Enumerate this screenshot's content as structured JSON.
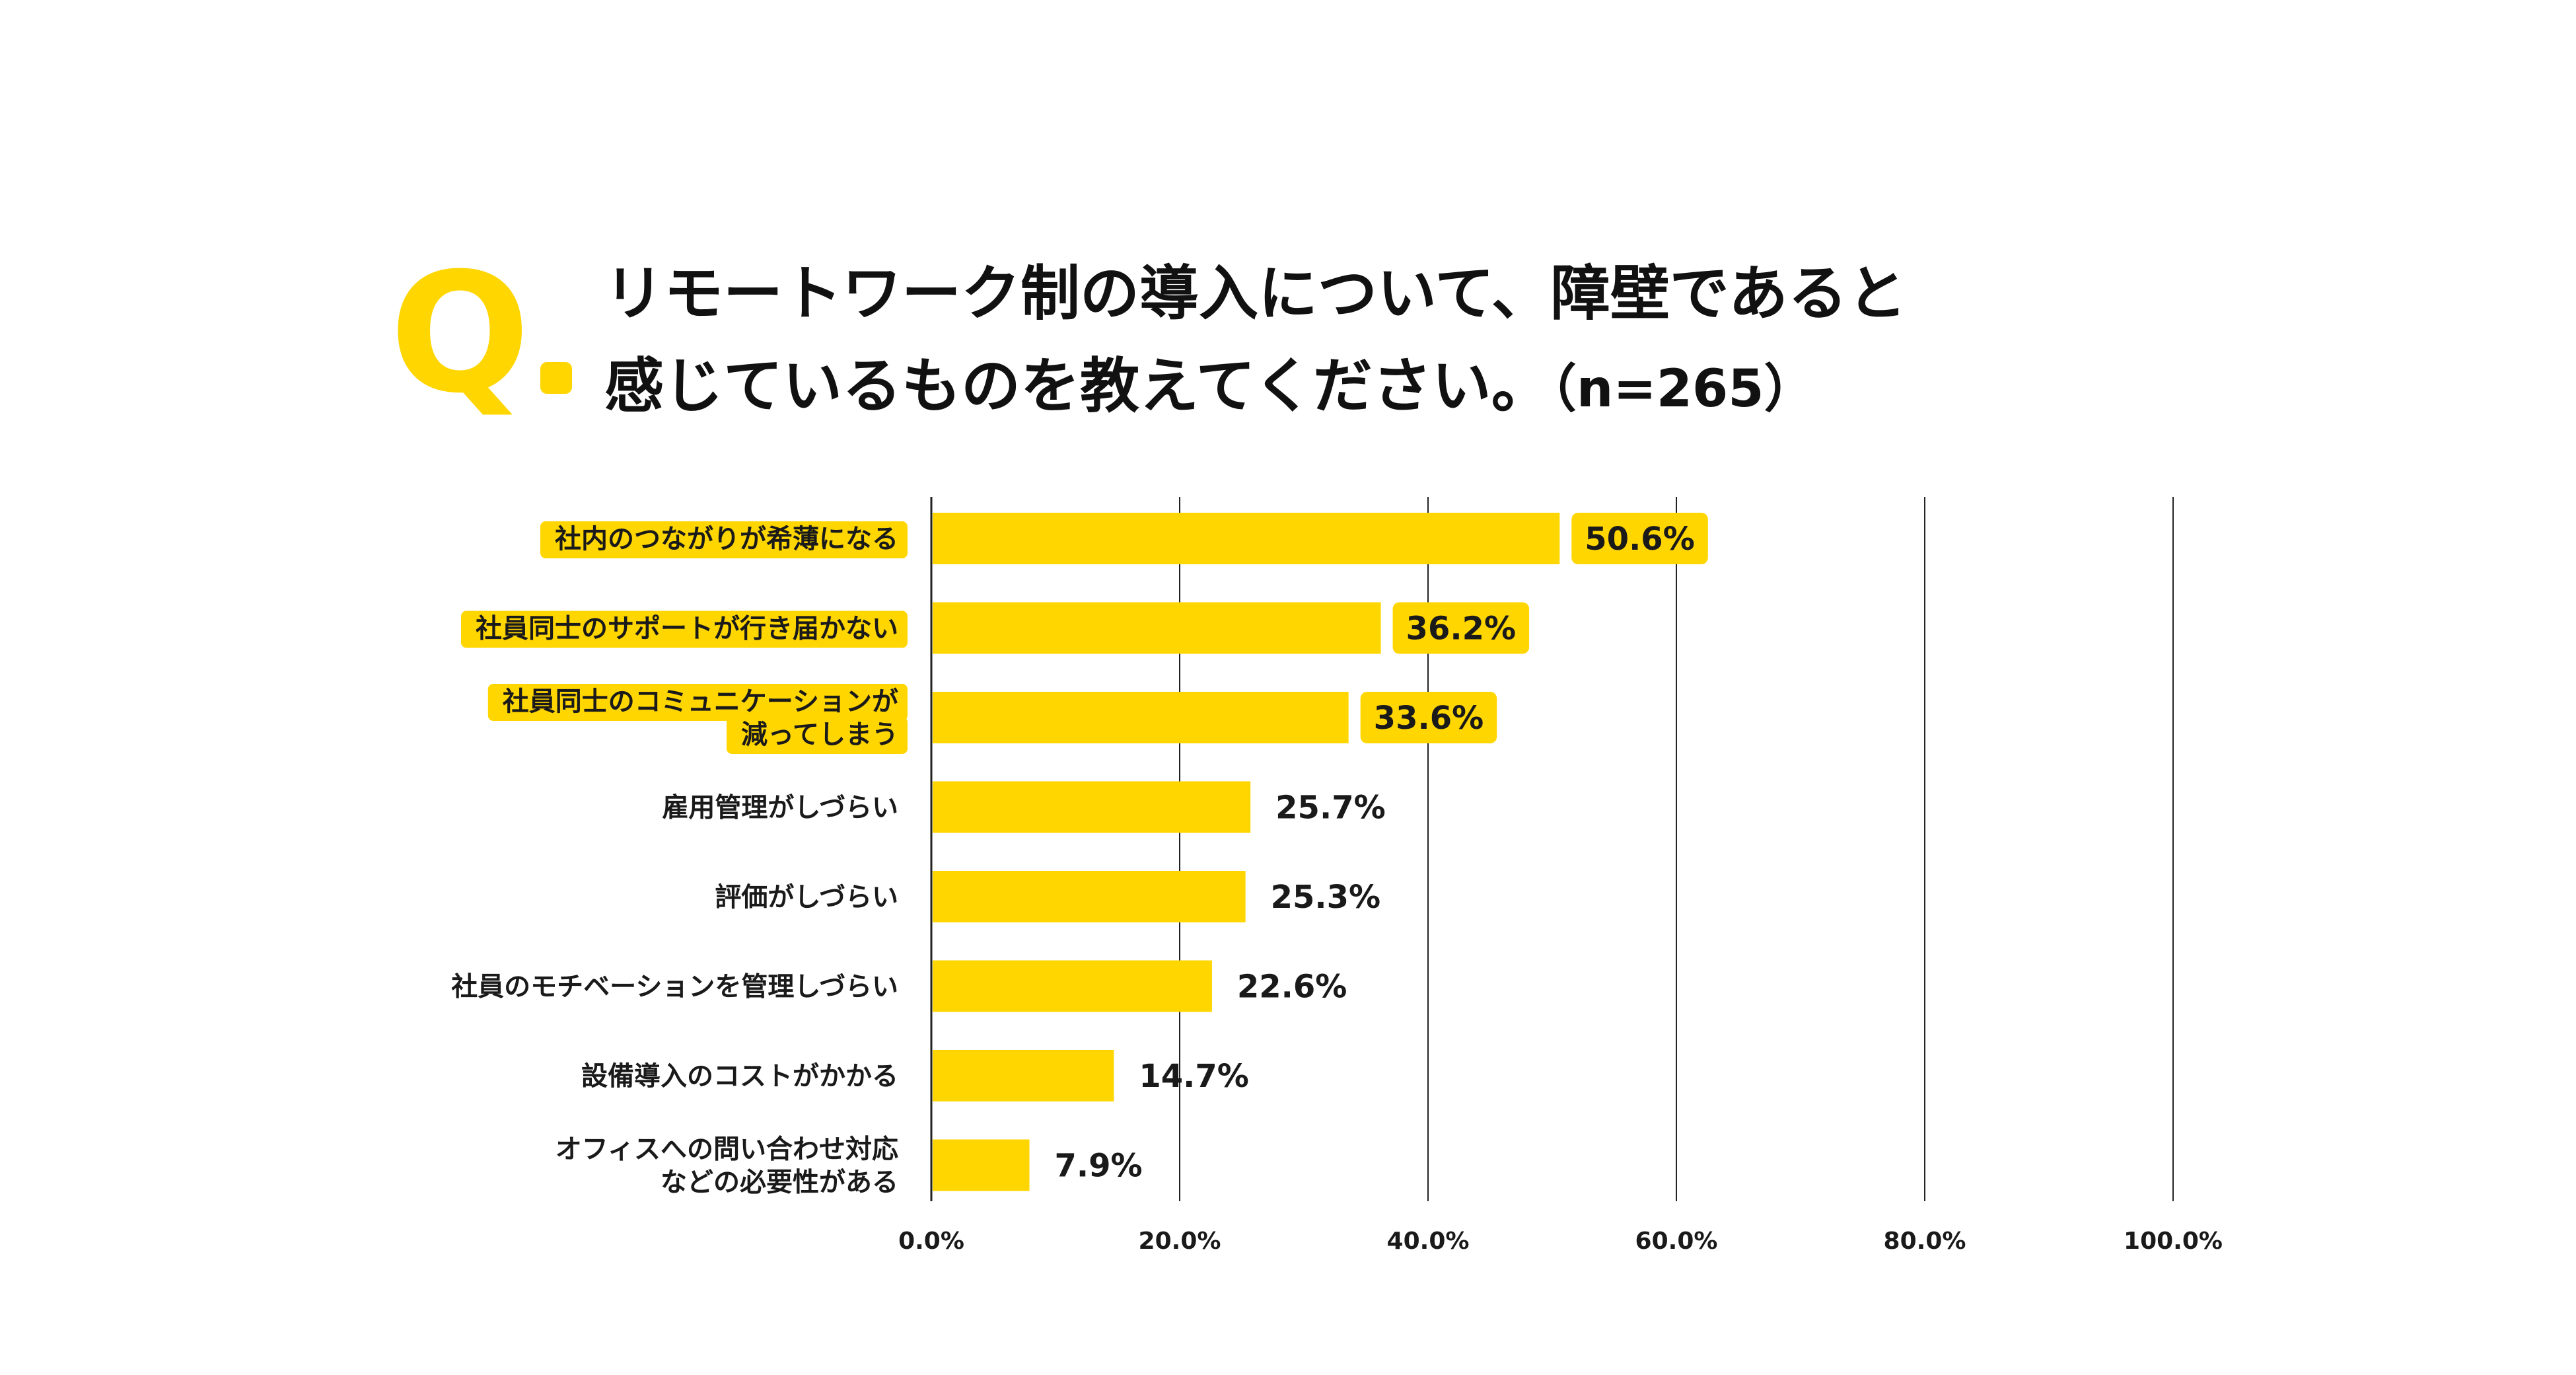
{
  "question": {
    "mark": "Q",
    "line1": "リモートワーク制の導入について、障壁であると",
    "line2": "感じているものを教えてください。",
    "sample": "（n=265）"
  },
  "colors": {
    "accent": "#FFD600",
    "grid": "#222222",
    "text": "#1a1a1a"
  },
  "chart_data": {
    "type": "bar",
    "orientation": "horizontal",
    "title": "リモートワーク制の導入について、障壁であると感じているものを教えてください。（n=265）",
    "categories": [
      [
        "社内のつながりが希薄になる"
      ],
      [
        "社員同士のサポートが行き届かない"
      ],
      [
        "社員同士のコミュニケーションが",
        "減ってしまう"
      ],
      [
        "雇用管理がしづらい"
      ],
      [
        "評価がしづらい"
      ],
      [
        "社員のモチベーションを管理しづらい"
      ],
      [
        "設備導入のコストがかかる"
      ],
      [
        "オフィスへの問い合わせ対応",
        "などの必要性がある"
      ]
    ],
    "values": [
      50.6,
      36.2,
      33.6,
      25.7,
      25.3,
      22.6,
      14.7,
      7.9
    ],
    "value_labels": [
      "50.6%",
      "36.2%",
      "33.6%",
      "25.7%",
      "25.3%",
      "22.6%",
      "14.7%",
      "7.9%"
    ],
    "highlighted": [
      true,
      true,
      true,
      false,
      false,
      false,
      false,
      false
    ],
    "xlim": [
      0,
      100
    ],
    "xticks": [
      0,
      20,
      40,
      60,
      80,
      100
    ],
    "xtick_labels": [
      "0.0%",
      "20.0%",
      "40.0%",
      "60.0%",
      "80.0%",
      "100.0%"
    ],
    "grid": true,
    "legend": "none"
  }
}
